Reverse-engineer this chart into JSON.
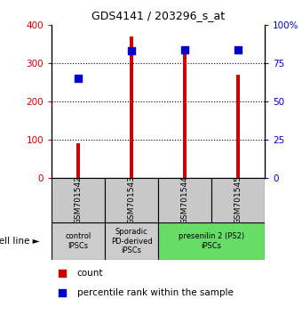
{
  "title": "GDS4141 / 203296_s_at",
  "samples": [
    "GSM701542",
    "GSM701543",
    "GSM701544",
    "GSM701545"
  ],
  "counts": [
    90,
    370,
    330,
    270
  ],
  "percentiles": [
    65,
    83,
    84,
    84
  ],
  "ylim_left": [
    0,
    400
  ],
  "ylim_right": [
    0,
    100
  ],
  "yticks_left": [
    0,
    100,
    200,
    300,
    400
  ],
  "yticks_right": [
    0,
    25,
    50,
    75,
    100
  ],
  "ytick_labels_right": [
    "0",
    "25",
    "50",
    "75",
    "100%"
  ],
  "bar_color": "#cc0000",
  "square_color": "#0000cc",
  "groups": [
    {
      "label": "control\nIPSCs",
      "start": 0,
      "end": 1,
      "color": "#cccccc"
    },
    {
      "label": "Sporadic\nPD-derived\niPSCs",
      "start": 1,
      "end": 2,
      "color": "#cccccc"
    },
    {
      "label": "presenilin 2 (PS2)\niPSCs",
      "start": 2,
      "end": 4,
      "color": "#66dd66"
    }
  ],
  "cell_line_label": "cell line",
  "legend_count_label": "count",
  "legend_percentile_label": "percentile rank within the sample",
  "plot_bg": "#ffffff",
  "sample_box_color": "#c8c8c8",
  "grid_dotted_color": "#000000"
}
